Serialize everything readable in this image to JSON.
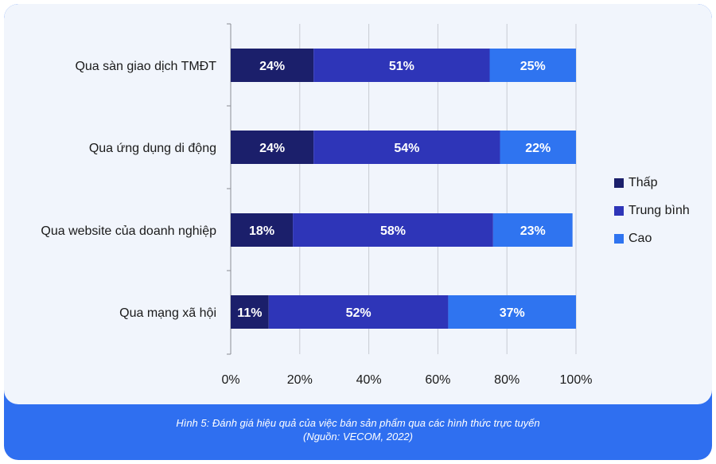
{
  "chart_data": {
    "type": "bar",
    "orientation": "horizontal",
    "stacked": true,
    "categories": [
      "Qua sàn giao dịch TMĐT",
      "Qua ứng dụng di động",
      "Qua website của doanh nghiệp",
      "Qua mạng xã hội"
    ],
    "series": [
      {
        "name": "Thấp",
        "values": [
          24,
          24,
          18,
          11
        ],
        "color": "#1b1f6b"
      },
      {
        "name": "Trung bình",
        "values": [
          51,
          54,
          58,
          52
        ],
        "color": "#2e35b8"
      },
      {
        "name": "Cao",
        "values": [
          25,
          22,
          23,
          37
        ],
        "color": "#2f74f0"
      }
    ],
    "value_labels": [
      [
        "24%",
        "51%",
        "25%"
      ],
      [
        "24%",
        "54%",
        "22%"
      ],
      [
        "18%",
        "58%",
        "23%"
      ],
      [
        "11%",
        "52%",
        "37%"
      ]
    ],
    "xlim": [
      0,
      100
    ],
    "x_ticks": [
      "0%",
      "20%",
      "40%",
      "60%",
      "80%",
      "100%"
    ],
    "grid": true,
    "legend_position": "right"
  },
  "caption": {
    "line1": "Hình 5: Đánh giá hiệu quả của việc bán sản phẩm qua các hình thức trực tuyến",
    "line2": "(Nguồn: VECOM, 2022)"
  }
}
